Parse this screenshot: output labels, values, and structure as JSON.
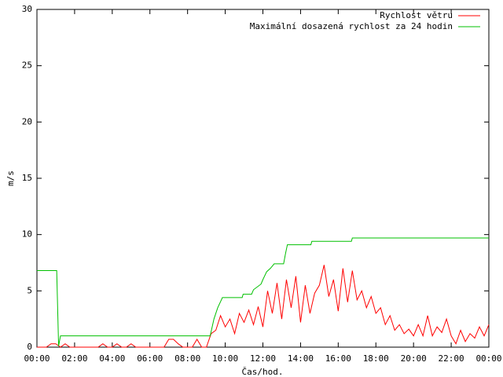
{
  "chart_data": {
    "type": "line",
    "xlabel": "Čas/hod.",
    "ylabel": "m/s",
    "xlim": [
      0,
      24
    ],
    "ylim": [
      0,
      30
    ],
    "xticks": [
      {
        "value": 0,
        "label": "00:00"
      },
      {
        "value": 2,
        "label": "02:00"
      },
      {
        "value": 4,
        "label": "04:00"
      },
      {
        "value": 6,
        "label": "06:00"
      },
      {
        "value": 8,
        "label": "08:00"
      },
      {
        "value": 10,
        "label": "10:00"
      },
      {
        "value": 12,
        "label": "12:00"
      },
      {
        "value": 14,
        "label": "14:00"
      },
      {
        "value": 16,
        "label": "16:00"
      },
      {
        "value": 18,
        "label": "18:00"
      },
      {
        "value": 20,
        "label": "20:00"
      },
      {
        "value": 22,
        "label": "22:00"
      },
      {
        "value": 24,
        "label": "00:00"
      }
    ],
    "yticks": [
      0,
      5,
      10,
      15,
      20,
      25,
      30
    ],
    "legend": "top-right",
    "series": [
      {
        "name": "Rychlost větru",
        "color": "#ff0000",
        "x": [
          0,
          0.25,
          0.5,
          0.75,
          1,
          1.25,
          1.5,
          1.75,
          2,
          2.25,
          2.5,
          2.75,
          3,
          3.25,
          3.5,
          3.75,
          4,
          4.25,
          4.5,
          4.75,
          5,
          5.25,
          5.5,
          5.75,
          6,
          6.25,
          6.5,
          6.75,
          7,
          7.25,
          7.5,
          7.75,
          8,
          8.25,
          8.5,
          8.75,
          9,
          9.25,
          9.5,
          9.75,
          10,
          10.25,
          10.5,
          10.75,
          11,
          11.25,
          11.5,
          11.75,
          12,
          12.25,
          12.5,
          12.75,
          13,
          13.25,
          13.5,
          13.75,
          14,
          14.25,
          14.5,
          14.75,
          15,
          15.25,
          15.5,
          15.75,
          16,
          16.25,
          16.5,
          16.75,
          17,
          17.25,
          17.5,
          17.75,
          18,
          18.25,
          18.5,
          18.75,
          19,
          19.25,
          19.5,
          19.75,
          20,
          20.25,
          20.5,
          20.75,
          21,
          21.25,
          21.5,
          21.75,
          22,
          22.25,
          22.5,
          22.75,
          23,
          23.25,
          23.5,
          23.75,
          24
        ],
        "values": [
          0,
          0,
          0,
          0.3,
          0.3,
          0,
          0.3,
          0,
          0,
          0,
          0,
          0,
          0,
          0,
          0.3,
          0,
          0,
          0.3,
          0,
          0,
          0.3,
          0,
          0,
          0,
          0,
          0,
          0,
          0,
          0.7,
          0.7,
          0.3,
          0,
          0,
          0,
          0.7,
          0,
          0,
          1.2,
          1.5,
          2.8,
          1.8,
          2.5,
          1.2,
          3.0,
          2.2,
          3.3,
          2.0,
          3.6,
          1.8,
          5.0,
          3.0,
          5.7,
          2.5,
          6.0,
          3.5,
          6.3,
          2.2,
          5.5,
          3.0,
          4.8,
          5.5,
          7.3,
          4.5,
          6.0,
          3.2,
          7.0,
          4.0,
          6.8,
          4.2,
          5.0,
          3.5,
          4.5,
          3.0,
          3.5,
          2.0,
          2.8,
          1.5,
          2.0,
          1.2,
          1.6,
          1.0,
          2.0,
          1.0,
          2.8,
          1.0,
          1.8,
          1.3,
          2.5,
          1.0,
          0.3,
          1.5,
          0.5,
          1.2,
          0.8,
          1.8,
          1.0,
          2.0
        ]
      },
      {
        "name": "Maximální dosazená rychlost za 24 hodin",
        "color": "#00c000",
        "x": [
          0,
          1.05,
          1.15,
          1.25,
          9.2,
          9.4,
          9.6,
          9.85,
          10.9,
          10.95,
          11.4,
          11.5,
          11.9,
          12.0,
          12.2,
          12.4,
          12.6,
          13.1,
          13.2,
          13.3,
          14.55,
          14.6,
          16.7,
          16.75,
          24
        ],
        "values": [
          6.8,
          6.8,
          0.1,
          1.0,
          1.0,
          2.5,
          3.5,
          4.4,
          4.4,
          4.7,
          4.7,
          5.1,
          5.6,
          6.0,
          6.7,
          7.0,
          7.4,
          7.4,
          8.3,
          9.1,
          9.1,
          9.4,
          9.4,
          9.7,
          9.7
        ]
      }
    ]
  }
}
